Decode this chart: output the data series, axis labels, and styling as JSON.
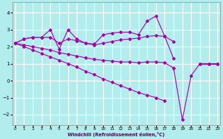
{
  "background_color": "#b2eded",
  "grid_color": "#ffffff",
  "line_color": "#aa00aa",
  "xlim": [
    -0.3,
    23.3
  ],
  "ylim": [
    -2.6,
    4.6
  ],
  "xticks": [
    0,
    1,
    2,
    3,
    4,
    5,
    6,
    7,
    8,
    9,
    10,
    11,
    12,
    13,
    14,
    15,
    16,
    17,
    18,
    19,
    20,
    21,
    22,
    23
  ],
  "yticks": [
    -2,
    -1,
    0,
    1,
    2,
    3,
    4
  ],
  "xlabel": "Windchill (Refroidissement éolien,°C)",
  "series": [
    {
      "x": [
        0,
        1,
        2,
        3,
        4,
        5,
        6,
        7,
        8,
        9,
        10,
        11,
        12,
        13,
        14,
        15,
        16,
        17,
        18
      ],
      "y": [
        2.2,
        2.45,
        2.55,
        2.55,
        3.0,
        1.85,
        3.0,
        2.45,
        2.2,
        2.15,
        2.7,
        2.8,
        2.85,
        2.85,
        2.7,
        3.5,
        3.8,
        2.6,
        1.3
      ]
    },
    {
      "x": [
        0,
        1,
        2,
        3,
        4,
        5,
        6,
        7,
        8,
        9,
        10,
        11,
        12,
        13,
        14,
        15,
        16,
        17,
        18
      ],
      "y": [
        2.2,
        2.45,
        2.55,
        2.55,
        2.55,
        2.2,
        2.45,
        2.35,
        2.2,
        2.1,
        2.2,
        2.3,
        2.4,
        2.45,
        2.5,
        2.6,
        2.65,
        2.6,
        2.3
      ]
    },
    {
      "x": [
        0,
        1,
        2,
        3,
        4,
        5,
        6,
        7,
        8,
        9,
        10,
        11,
        12,
        13,
        14,
        15,
        16,
        17,
        18,
        19,
        20,
        21,
        22,
        23
      ],
      "y": [
        2.2,
        2.1,
        2.0,
        1.9,
        1.8,
        1.65,
        1.55,
        1.45,
        1.35,
        1.25,
        1.2,
        1.15,
        1.1,
        1.1,
        1.05,
        1.1,
        1.1,
        1.05,
        0.75,
        null,
        null,
        1.0,
        1.0,
        1.0
      ]
    },
    {
      "x": [
        0,
        1,
        2,
        3,
        4,
        5,
        6,
        7,
        8,
        9,
        10,
        11,
        12,
        13,
        14,
        15,
        16,
        17,
        18,
        19,
        20,
        21,
        22,
        23
      ],
      "y": [
        2.2,
        2.0,
        1.8,
        1.6,
        1.4,
        1.2,
        1.0,
        0.8,
        0.55,
        0.35,
        0.1,
        -0.1,
        -0.3,
        -0.5,
        -0.7,
        -0.85,
        -1.0,
        -1.2,
        null,
        null,
        null,
        null,
        null,
        null
      ]
    }
  ],
  "series_sharp": {
    "x": [
      18,
      19,
      20,
      21,
      22,
      23
    ],
    "y": [
      0.75,
      -2.3,
      0.3,
      1.0,
      1.0,
      1.0
    ]
  }
}
